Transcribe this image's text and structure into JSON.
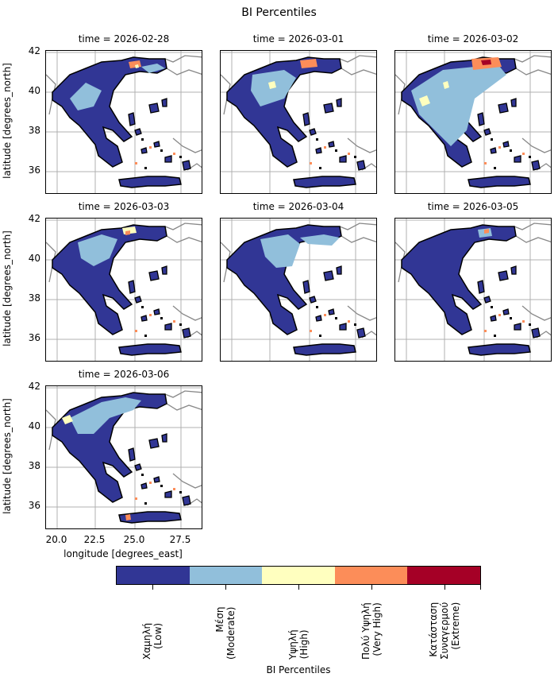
{
  "title": "BI Percentiles",
  "panels": [
    {
      "label": "time = 2026-02-28",
      "variant": 0
    },
    {
      "label": "time = 2026-03-01",
      "variant": 1
    },
    {
      "label": "time = 2026-03-02",
      "variant": 2
    },
    {
      "label": "time = 2026-03-03",
      "variant": 3
    },
    {
      "label": "time = 2026-03-04",
      "variant": 4
    },
    {
      "label": "time = 2026-03-05",
      "variant": 5
    },
    {
      "label": "time = 2026-03-06",
      "variant": 6
    }
  ],
  "axes": {
    "ylabel": "latitude [degrees_north]",
    "xlabel": "longitude [degrees_east]",
    "yticks": [
      "42",
      "40",
      "38",
      "36"
    ],
    "xticks": [
      "20.0",
      "22.5",
      "25.0",
      "27.5"
    ]
  },
  "colorbar": {
    "title": "BI Percentiles",
    "classes": [
      {
        "label": "Χαμηλή\n(Low)",
        "color": "#313695"
      },
      {
        "label": "Μέση\n(Moderate)",
        "color": "#91bfdb"
      },
      {
        "label": "Υψηλή\n(High)",
        "color": "#ffffbf"
      },
      {
        "label": "Πολύ Υψηλή\n(Very High)",
        "color": "#fc8d59"
      },
      {
        "label": "Κατάσταση\nΣυναγερμού\n(Extreme)",
        "color": "#a50026"
      }
    ]
  }
}
